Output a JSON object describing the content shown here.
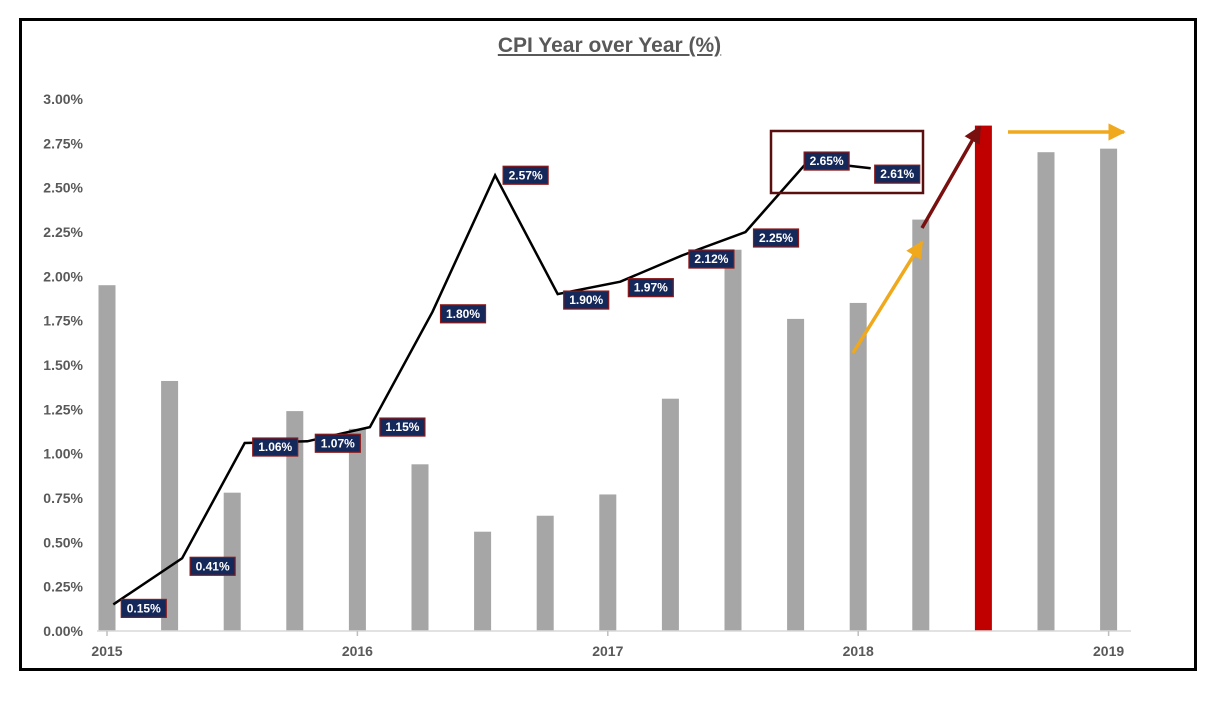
{
  "chart_data": {
    "type": "bar",
    "title": "CPI Year over Year (%)",
    "xlabel": "",
    "ylabel": "",
    "ylim": [
      0,
      3.0
    ],
    "y_ticks": [
      "0.00%",
      "0.25%",
      "0.50%",
      "0.75%",
      "1.00%",
      "1.25%",
      "1.50%",
      "1.75%",
      "2.00%",
      "2.25%",
      "2.50%",
      "2.75%",
      "3.00%"
    ],
    "x_tick_labels": [
      "2015",
      "2016",
      "2017",
      "2018",
      "2019"
    ],
    "grid": false,
    "legend": "none",
    "bars": {
      "color": "#a6a6a6",
      "highlight_color": "#c00000",
      "highlight_index": 14,
      "values": [
        1.95,
        1.41,
        0.78,
        1.24,
        1.14,
        0.94,
        0.56,
        0.65,
        0.77,
        1.31,
        2.15,
        1.76,
        1.85,
        2.32,
        2.85,
        2.7,
        2.72
      ]
    },
    "line": {
      "color": "#000000",
      "points": [
        {
          "x": 0.1,
          "y": 0.15
        },
        {
          "x": 1.2,
          "y": 0.41
        },
        {
          "x": 2.2,
          "y": 1.06
        },
        {
          "x": 3.2,
          "y": 1.07
        },
        {
          "x": 4.2,
          "y": 1.15
        },
        {
          "x": 5.2,
          "y": 1.8
        },
        {
          "x": 6.2,
          "y": 2.57
        },
        {
          "x": 7.2,
          "y": 1.9
        },
        {
          "x": 8.2,
          "y": 1.97
        },
        {
          "x": 9.2,
          "y": 2.12
        },
        {
          "x": 10.2,
          "y": 2.25
        },
        {
          "x": 11.2,
          "y": 2.65
        },
        {
          "x": 12.2,
          "y": 2.61
        }
      ],
      "labels": [
        "0.15%",
        "0.41%",
        "1.06%",
        "1.07%",
        "1.15%",
        "1.80%",
        "2.57%",
        "1.90%",
        "1.97%",
        "2.12%",
        "2.25%",
        "2.65%",
        "2.61%"
      ],
      "label_bg": "#14285a",
      "label_border": "#8b1a1a"
    },
    "annotations": {
      "highlight_box_color": "#5a0f0f",
      "gold_arrow_color": "#f0a81c",
      "dark_red_arrow_color": "#7a0f0f"
    }
  }
}
